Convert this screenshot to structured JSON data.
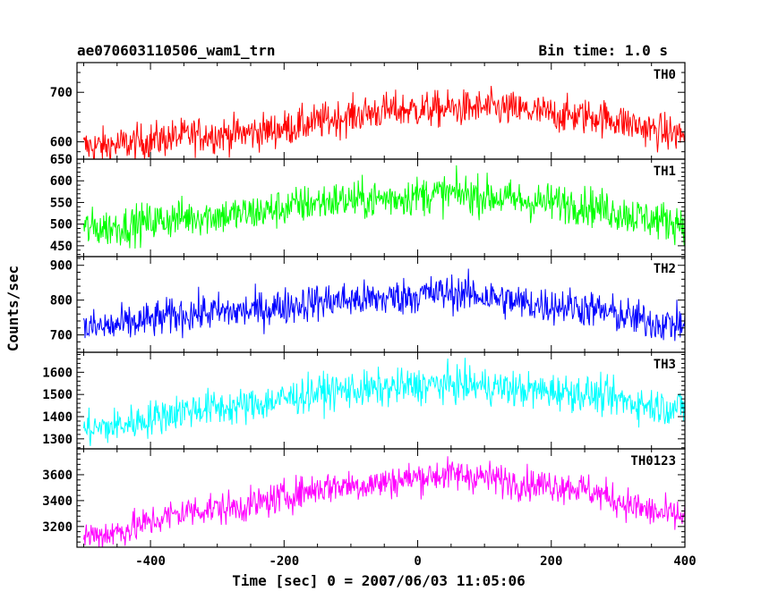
{
  "header": {
    "left_title": "ae070603110506_wam1_trn",
    "right_title": "Bin time: 1.0 s"
  },
  "chart_data": {
    "type": "line",
    "xlabel": "Time [sec] 0 = 2007/06/03 11:05:06",
    "ylabel": "Counts/sec",
    "xlim": [
      -510,
      400
    ],
    "xticks": [
      -400,
      -200,
      0,
      200,
      400
    ],
    "x_sample_step": 5,
    "panels": [
      {
        "name": "TH0",
        "color": "#ff0000",
        "ylim": [
          565,
          760
        ],
        "yticks": [
          600,
          700
        ],
        "trend": [
          [
            -500,
            590
          ],
          [
            -300,
            615
          ],
          [
            0,
            665
          ],
          [
            100,
            668
          ],
          [
            250,
            652
          ],
          [
            400,
            615
          ]
        ],
        "noise_amplitude": 26
      },
      {
        "name": "TH1",
        "color": "#00ff00",
        "ylim": [
          425,
          650
        ],
        "yticks": [
          450,
          500,
          550,
          600,
          650
        ],
        "trend": [
          [
            -500,
            490
          ],
          [
            -300,
            520
          ],
          [
            -100,
            555
          ],
          [
            50,
            570
          ],
          [
            200,
            550
          ],
          [
            400,
            505
          ]
        ],
        "noise_amplitude": 32
      },
      {
        "name": "TH2",
        "color": "#0000ff",
        "ylim": [
          650,
          925
        ],
        "yticks": [
          700,
          800,
          900
        ],
        "trend": [
          [
            -500,
            720
          ],
          [
            -300,
            765
          ],
          [
            -100,
            800
          ],
          [
            50,
            820
          ],
          [
            200,
            785
          ],
          [
            400,
            730
          ]
        ],
        "noise_amplitude": 38
      },
      {
        "name": "TH3",
        "color": "#00ffff",
        "ylim": [
          1255,
          1690
        ],
        "yticks": [
          1300,
          1400,
          1500,
          1600
        ],
        "trend": [
          [
            -500,
            1345
          ],
          [
            -300,
            1440
          ],
          [
            -100,
            1520
          ],
          [
            50,
            1545
          ],
          [
            200,
            1515
          ],
          [
            400,
            1440
          ]
        ],
        "noise_amplitude": 58
      },
      {
        "name": "TH0123",
        "color": "#ff00ff",
        "ylim": [
          3040,
          3800
        ],
        "yticks": [
          3200,
          3400,
          3600
        ],
        "trend": [
          [
            -500,
            3130
          ],
          [
            -300,
            3340
          ],
          [
            -100,
            3520
          ],
          [
            50,
            3600
          ],
          [
            200,
            3520
          ],
          [
            400,
            3280
          ]
        ],
        "noise_amplitude": 90
      }
    ]
  }
}
